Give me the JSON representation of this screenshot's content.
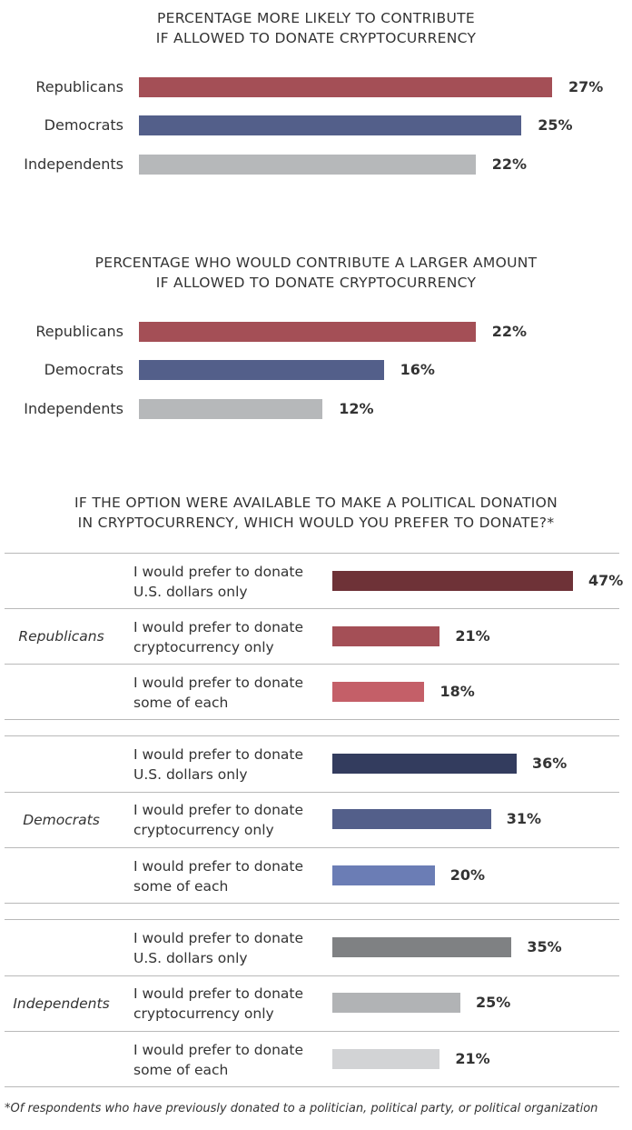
{
  "chart_data": [
    {
      "type": "bar",
      "orientation": "horizontal",
      "title_lines": [
        "PERCENTAGE MORE LIKELY TO CONTRIBUTE",
        "IF ALLOWED TO DONATE CRYPTOCURRENCY"
      ],
      "categories": [
        "Republicans",
        "Democrats",
        "Independents"
      ],
      "values": [
        27,
        25,
        22
      ],
      "value_labels": [
        "27%",
        "25%",
        "22%"
      ],
      "colors": [
        "#a44f56",
        "#535f8a",
        "#b6b8ba"
      ],
      "unit": "%"
    },
    {
      "type": "bar",
      "orientation": "horizontal",
      "title_lines": [
        "PERCENTAGE WHO WOULD CONTRIBUTE A LARGER AMOUNT",
        "IF ALLOWED TO DONATE CRYPTOCURRENCY"
      ],
      "categories": [
        "Republicans",
        "Democrats",
        "Independents"
      ],
      "values": [
        22,
        16,
        12
      ],
      "value_labels": [
        "22%",
        "16%",
        "12%"
      ],
      "colors": [
        "#a44f56",
        "#535f8a",
        "#b6b8ba"
      ],
      "unit": "%"
    },
    {
      "type": "bar",
      "orientation": "horizontal",
      "title_lines": [
        "IF THE OPTION WERE AVAILABLE TO MAKE A POLITICAL DONATION",
        "IN CRYPTOCURRENCY, WHICH WOULD YOU PREFER TO DONATE?*"
      ],
      "groups": [
        {
          "name": "Republicans",
          "rows": [
            {
              "label_lines": [
                "I would prefer to donate",
                "U.S. dollars only"
              ],
              "value": 47,
              "value_label": "47%",
              "color": "#6e3237"
            },
            {
              "label_lines": [
                "I would prefer to donate",
                "cryptocurrency only"
              ],
              "value": 21,
              "value_label": "21%",
              "color": "#a44f56"
            },
            {
              "label_lines": [
                "I would prefer to donate",
                "some of each"
              ],
              "value": 18,
              "value_label": "18%",
              "color": "#c45f68"
            }
          ]
        },
        {
          "name": "Democrats",
          "rows": [
            {
              "label_lines": [
                "I would prefer to donate",
                "U.S. dollars only"
              ],
              "value": 36,
              "value_label": "36%",
              "color": "#333c5e"
            },
            {
              "label_lines": [
                "I would prefer to donate",
                "cryptocurrency only"
              ],
              "value": 31,
              "value_label": "31%",
              "color": "#535f8a"
            },
            {
              "label_lines": [
                "I would prefer to donate",
                "some of each"
              ],
              "value": 20,
              "value_label": "20%",
              "color": "#6b7db5"
            }
          ]
        },
        {
          "name": "Independents",
          "rows": [
            {
              "label_lines": [
                "I would prefer to donate",
                "U.S. dollars only"
              ],
              "value": 35,
              "value_label": "35%",
              "color": "#7f8183"
            },
            {
              "label_lines": [
                "I would prefer to donate",
                "cryptocurrency only"
              ],
              "value": 25,
              "value_label": "25%",
              "color": "#b1b3b5"
            },
            {
              "label_lines": [
                "I would prefer to donate",
                "some of each"
              ],
              "value": 21,
              "value_label": "21%",
              "color": "#d2d3d5"
            }
          ]
        }
      ],
      "unit": "%"
    }
  ],
  "footnote": "*Of respondents who have previously donated to a politician, political party, or political organization"
}
